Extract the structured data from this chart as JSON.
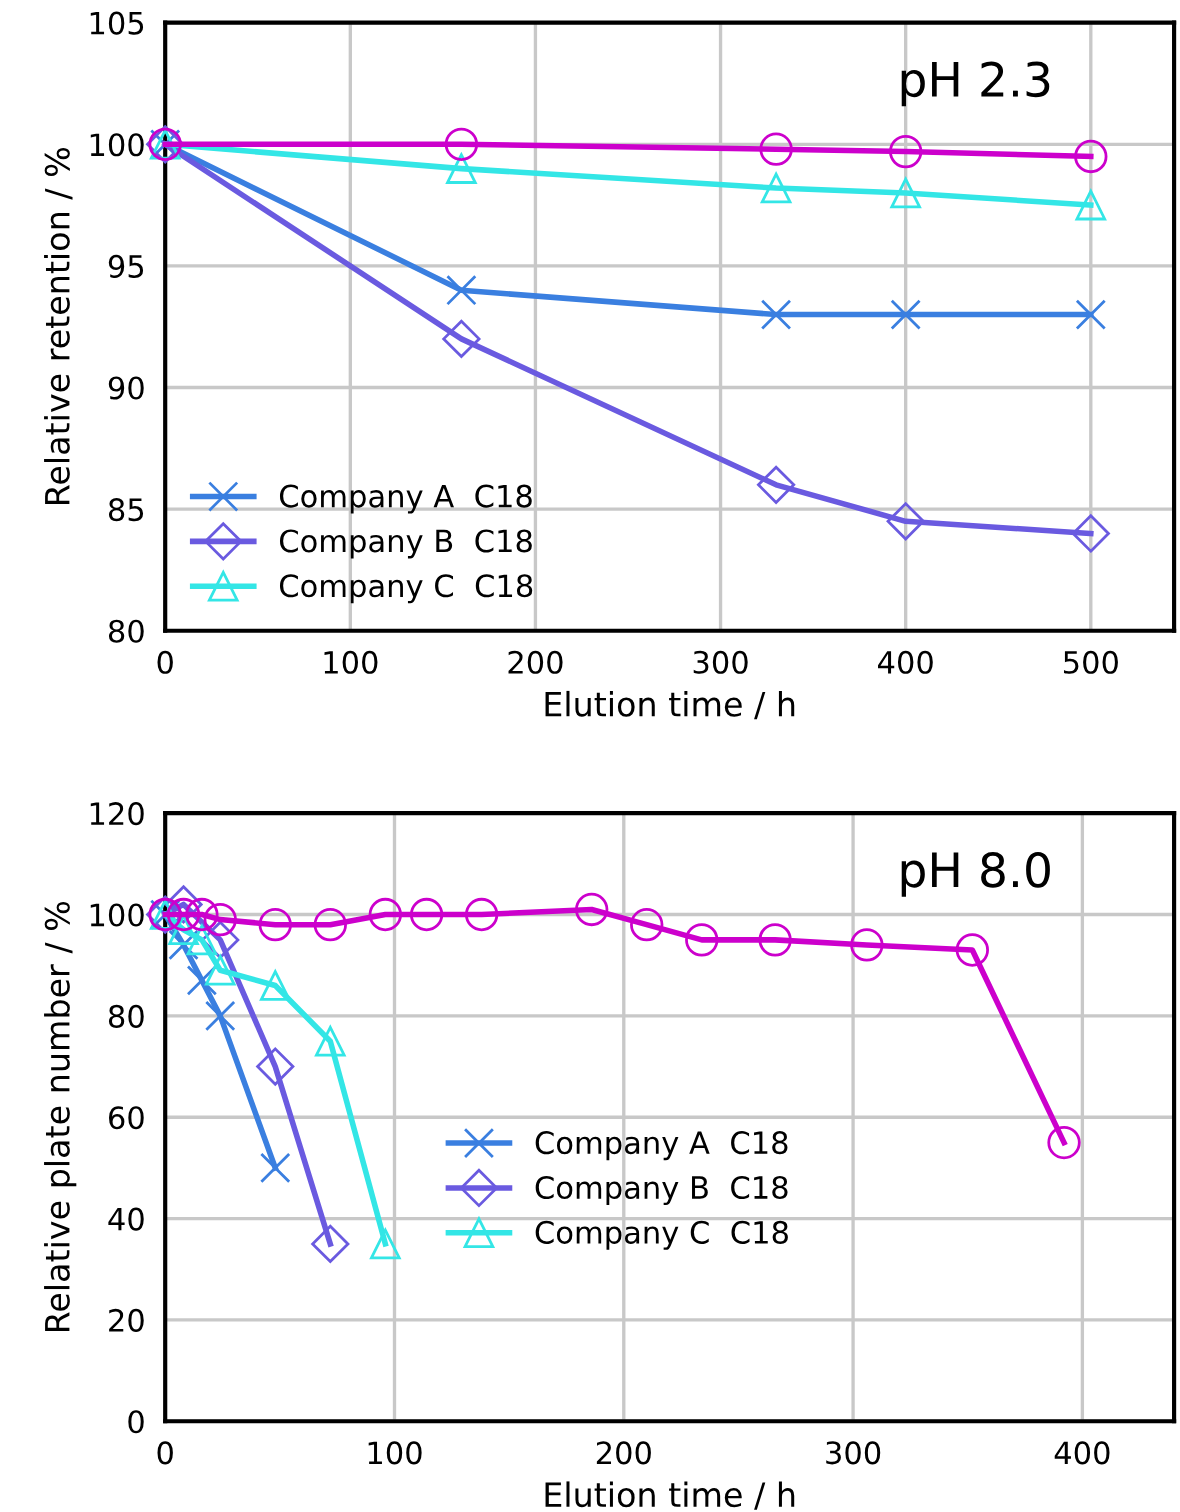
{
  "chart_data": [
    {
      "type": "line",
      "xlabel": "Elution time / h",
      "ylabel": "Relative retention / %",
      "annotations": [
        "pH 2.3"
      ],
      "xlim": [
        0,
        545
      ],
      "xticks": [
        0,
        100,
        200,
        300,
        400,
        500
      ],
      "ylim": [
        80,
        105
      ],
      "yticks": [
        80,
        85,
        90,
        95,
        100,
        105
      ],
      "grid": true,
      "legend": "bottom left",
      "series": [
        {
          "name": "Company A  C18",
          "color": "#3a7fe0",
          "marker": "cross",
          "x": [
            0,
            160,
            330,
            400,
            500
          ],
          "values": [
            100,
            94,
            93,
            93,
            93
          ]
        },
        {
          "name": "Company B  C18",
          "color": "#6a5ae0",
          "marker": "diamond",
          "x": [
            0,
            160,
            330,
            400,
            500
          ],
          "values": [
            100,
            92,
            86,
            84.5,
            84
          ]
        },
        {
          "name": "Company C  C18",
          "color": "#33e6e6",
          "marker": "triangle",
          "x": [
            0,
            160,
            330,
            400,
            500
          ],
          "values": [
            100,
            99,
            98.2,
            98,
            97.5
          ]
        },
        {
          "color": "#cc00cc",
          "marker": "circle",
          "x": [
            0,
            160,
            330,
            400,
            500
          ],
          "values": [
            100,
            100,
            99.8,
            99.7,
            99.5
          ]
        }
      ]
    },
    {
      "type": "line",
      "xlabel": "Elution time / h",
      "ylabel": "Relative plate number / %",
      "annotations": [
        "pH 8.0"
      ],
      "xlim": [
        0,
        440
      ],
      "xticks": [
        0,
        100,
        200,
        300,
        400
      ],
      "ylim": [
        0,
        120
      ],
      "yticks": [
        0,
        20,
        40,
        60,
        80,
        100,
        120
      ],
      "grid": true,
      "legend": "center",
      "series": [
        {
          "name": "Company A  C18",
          "color": "#3a7fe0",
          "marker": "cross",
          "x": [
            0,
            8,
            16,
            24,
            48
          ],
          "values": [
            100,
            94,
            87,
            80,
            50
          ]
        },
        {
          "name": "Company B  C18",
          "color": "#6a5ae0",
          "marker": "diamond",
          "x": [
            0,
            8,
            24,
            48,
            72
          ],
          "values": [
            100,
            102,
            95,
            70,
            35
          ]
        },
        {
          "name": "Company C  C18",
          "color": "#33e6e6",
          "marker": "triangle",
          "x": [
            0,
            8,
            16,
            24,
            48,
            72,
            96
          ],
          "values": [
            100,
            97,
            95,
            89,
            86,
            75,
            35
          ]
        },
        {
          "color": "#cc00cc",
          "marker": "circle",
          "x": [
            0,
            8,
            16,
            24,
            48,
            72,
            96,
            114,
            138,
            186,
            210,
            234,
            266,
            306,
            352,
            392
          ],
          "values": [
            100,
            100,
            100,
            99,
            98,
            98,
            100,
            100,
            100,
            101,
            98,
            95,
            95,
            94,
            93,
            55
          ]
        }
      ]
    }
  ]
}
